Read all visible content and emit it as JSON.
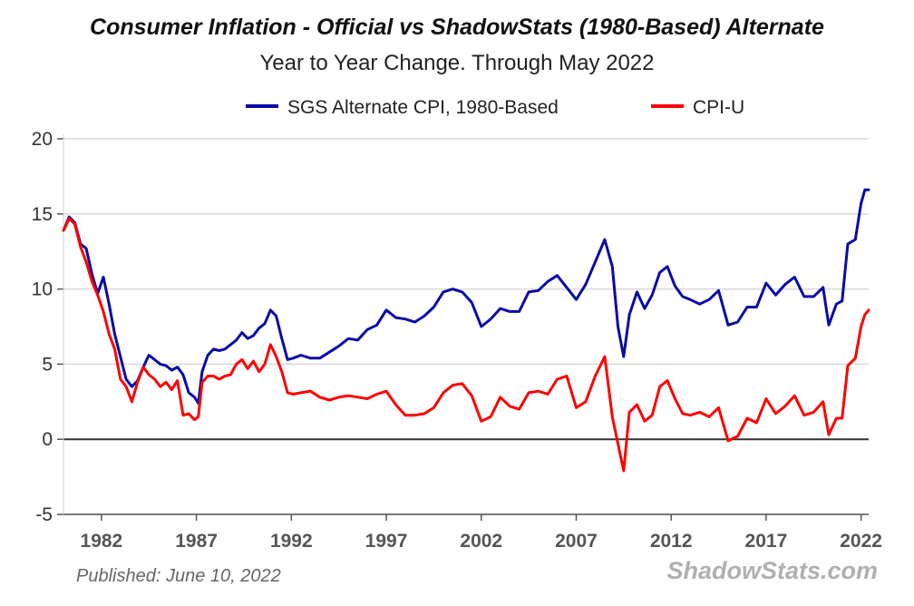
{
  "chart_data": {
    "type": "line",
    "title": "Consumer Inflation - Official vs ShadowStats (1980-Based) Alternate",
    "subtitle": "Year to Year Change. Through May 2022",
    "xlabel": "",
    "ylabel": "",
    "xlim": [
      1980,
      2022.4
    ],
    "ylim": [
      -5,
      20
    ],
    "yticks": [
      "-5",
      "0",
      "5",
      "10",
      "15",
      "20"
    ],
    "xticks": [
      "1982",
      "1987",
      "1992",
      "1997",
      "2002",
      "2007",
      "2012",
      "2017",
      "2022"
    ],
    "grid": true,
    "legend_position": "top",
    "series": [
      {
        "name": "SGS Alternate CPI, 1980-Based",
        "color": "#0a0aa6",
        "points": [
          [
            1980.0,
            13.9
          ],
          [
            1980.3,
            14.8
          ],
          [
            1980.6,
            14.4
          ],
          [
            1980.9,
            13.0
          ],
          [
            1981.2,
            12.7
          ],
          [
            1981.5,
            11.0
          ],
          [
            1981.8,
            9.7
          ],
          [
            1982.1,
            10.8
          ],
          [
            1982.4,
            9.0
          ],
          [
            1982.7,
            7.0
          ],
          [
            1983.0,
            5.5
          ],
          [
            1983.3,
            4.0
          ],
          [
            1983.6,
            3.5
          ],
          [
            1983.9,
            3.9
          ],
          [
            1984.2,
            4.8
          ],
          [
            1984.5,
            5.6
          ],
          [
            1984.8,
            5.3
          ],
          [
            1985.1,
            5.0
          ],
          [
            1985.4,
            4.9
          ],
          [
            1985.7,
            4.6
          ],
          [
            1986.0,
            4.8
          ],
          [
            1986.3,
            4.3
          ],
          [
            1986.6,
            3.1
          ],
          [
            1986.9,
            2.8
          ],
          [
            1987.1,
            2.4
          ],
          [
            1987.3,
            4.5
          ],
          [
            1987.6,
            5.6
          ],
          [
            1987.9,
            6.0
          ],
          [
            1988.2,
            5.9
          ],
          [
            1988.5,
            6.0
          ],
          [
            1988.8,
            6.3
          ],
          [
            1989.1,
            6.6
          ],
          [
            1989.4,
            7.1
          ],
          [
            1989.7,
            6.7
          ],
          [
            1990.0,
            6.9
          ],
          [
            1990.3,
            7.4
          ],
          [
            1990.6,
            7.7
          ],
          [
            1990.9,
            8.6
          ],
          [
            1991.2,
            8.2
          ],
          [
            1991.5,
            6.7
          ],
          [
            1991.8,
            5.3
          ],
          [
            1992.1,
            5.4
          ],
          [
            1992.5,
            5.6
          ],
          [
            1993.0,
            5.4
          ],
          [
            1993.5,
            5.4
          ],
          [
            1994.0,
            5.8
          ],
          [
            1994.5,
            6.2
          ],
          [
            1995.0,
            6.7
          ],
          [
            1995.5,
            6.6
          ],
          [
            1996.0,
            7.3
          ],
          [
            1996.5,
            7.6
          ],
          [
            1997.0,
            8.6
          ],
          [
            1997.5,
            8.1
          ],
          [
            1998.0,
            8.0
          ],
          [
            1998.5,
            7.8
          ],
          [
            1999.0,
            8.2
          ],
          [
            1999.5,
            8.8
          ],
          [
            2000.0,
            9.8
          ],
          [
            2000.5,
            10.0
          ],
          [
            2001.0,
            9.8
          ],
          [
            2001.5,
            9.1
          ],
          [
            2002.0,
            7.5
          ],
          [
            2002.5,
            8.0
          ],
          [
            2003.0,
            8.7
          ],
          [
            2003.5,
            8.5
          ],
          [
            2004.0,
            8.5
          ],
          [
            2004.5,
            9.8
          ],
          [
            2005.0,
            9.9
          ],
          [
            2005.5,
            10.5
          ],
          [
            2006.0,
            10.9
          ],
          [
            2006.5,
            10.1
          ],
          [
            2007.0,
            9.3
          ],
          [
            2007.5,
            10.3
          ],
          [
            2008.0,
            11.8
          ],
          [
            2008.5,
            13.3
          ],
          [
            2008.9,
            11.5
          ],
          [
            2009.2,
            7.5
          ],
          [
            2009.5,
            5.5
          ],
          [
            2009.8,
            8.3
          ],
          [
            2010.2,
            9.8
          ],
          [
            2010.6,
            8.7
          ],
          [
            2011.0,
            9.6
          ],
          [
            2011.4,
            11.1
          ],
          [
            2011.8,
            11.5
          ],
          [
            2012.2,
            10.2
          ],
          [
            2012.6,
            9.5
          ],
          [
            2013.0,
            9.3
          ],
          [
            2013.5,
            9.0
          ],
          [
            2014.0,
            9.3
          ],
          [
            2014.5,
            9.9
          ],
          [
            2015.0,
            7.6
          ],
          [
            2015.5,
            7.8
          ],
          [
            2016.0,
            8.8
          ],
          [
            2016.5,
            8.8
          ],
          [
            2017.0,
            10.4
          ],
          [
            2017.5,
            9.6
          ],
          [
            2018.0,
            10.3
          ],
          [
            2018.5,
            10.8
          ],
          [
            2019.0,
            9.5
          ],
          [
            2019.5,
            9.5
          ],
          [
            2020.0,
            10.1
          ],
          [
            2020.3,
            7.6
          ],
          [
            2020.7,
            9.0
          ],
          [
            2021.0,
            9.2
          ],
          [
            2021.3,
            13.0
          ],
          [
            2021.7,
            13.3
          ],
          [
            2022.0,
            15.7
          ],
          [
            2022.2,
            16.6
          ],
          [
            2022.4,
            16.6
          ]
        ]
      },
      {
        "name": "CPI-U",
        "color": "#ff0000",
        "points": [
          [
            1980.0,
            13.9
          ],
          [
            1980.3,
            14.7
          ],
          [
            1980.6,
            14.3
          ],
          [
            1980.9,
            12.8
          ],
          [
            1981.2,
            11.8
          ],
          [
            1981.5,
            10.5
          ],
          [
            1981.8,
            9.6
          ],
          [
            1982.1,
            8.5
          ],
          [
            1982.4,
            7.0
          ],
          [
            1982.7,
            6.0
          ],
          [
            1983.0,
            4.0
          ],
          [
            1983.3,
            3.5
          ],
          [
            1983.6,
            2.5
          ],
          [
            1983.9,
            3.8
          ],
          [
            1984.2,
            4.8
          ],
          [
            1984.5,
            4.3
          ],
          [
            1984.8,
            4.0
          ],
          [
            1985.1,
            3.5
          ],
          [
            1985.4,
            3.8
          ],
          [
            1985.7,
            3.3
          ],
          [
            1986.0,
            3.9
          ],
          [
            1986.3,
            1.6
          ],
          [
            1986.6,
            1.7
          ],
          [
            1986.9,
            1.3
          ],
          [
            1987.1,
            1.5
          ],
          [
            1987.3,
            3.8
          ],
          [
            1987.6,
            4.2
          ],
          [
            1987.9,
            4.2
          ],
          [
            1988.2,
            4.0
          ],
          [
            1988.5,
            4.2
          ],
          [
            1988.8,
            4.3
          ],
          [
            1989.1,
            5.0
          ],
          [
            1989.4,
            5.3
          ],
          [
            1989.7,
            4.7
          ],
          [
            1990.0,
            5.2
          ],
          [
            1990.3,
            4.5
          ],
          [
            1990.6,
            5.0
          ],
          [
            1990.9,
            6.3
          ],
          [
            1991.2,
            5.5
          ],
          [
            1991.5,
            4.5
          ],
          [
            1991.8,
            3.1
          ],
          [
            1992.1,
            3.0
          ],
          [
            1992.5,
            3.1
          ],
          [
            1993.0,
            3.2
          ],
          [
            1993.5,
            2.8
          ],
          [
            1994.0,
            2.6
          ],
          [
            1994.5,
            2.8
          ],
          [
            1995.0,
            2.9
          ],
          [
            1995.5,
            2.8
          ],
          [
            1996.0,
            2.7
          ],
          [
            1996.5,
            3.0
          ],
          [
            1997.0,
            3.2
          ],
          [
            1997.5,
            2.3
          ],
          [
            1998.0,
            1.6
          ],
          [
            1998.5,
            1.6
          ],
          [
            1999.0,
            1.7
          ],
          [
            1999.5,
            2.1
          ],
          [
            2000.0,
            3.1
          ],
          [
            2000.5,
            3.6
          ],
          [
            2001.0,
            3.7
          ],
          [
            2001.5,
            2.9
          ],
          [
            2002.0,
            1.2
          ],
          [
            2002.5,
            1.5
          ],
          [
            2003.0,
            2.8
          ],
          [
            2003.5,
            2.2
          ],
          [
            2004.0,
            2.0
          ],
          [
            2004.5,
            3.1
          ],
          [
            2005.0,
            3.2
          ],
          [
            2005.5,
            3.0
          ],
          [
            2006.0,
            4.0
          ],
          [
            2006.5,
            4.2
          ],
          [
            2007.0,
            2.1
          ],
          [
            2007.5,
            2.5
          ],
          [
            2008.0,
            4.2
          ],
          [
            2008.5,
            5.5
          ],
          [
            2008.9,
            1.5
          ],
          [
            2009.2,
            -0.3
          ],
          [
            2009.5,
            -2.1
          ],
          [
            2009.8,
            1.8
          ],
          [
            2010.2,
            2.3
          ],
          [
            2010.6,
            1.2
          ],
          [
            2011.0,
            1.6
          ],
          [
            2011.4,
            3.5
          ],
          [
            2011.8,
            3.9
          ],
          [
            2012.2,
            2.7
          ],
          [
            2012.6,
            1.7
          ],
          [
            2013.0,
            1.6
          ],
          [
            2013.5,
            1.8
          ],
          [
            2014.0,
            1.5
          ],
          [
            2014.5,
            2.1
          ],
          [
            2015.0,
            -0.1
          ],
          [
            2015.5,
            0.2
          ],
          [
            2016.0,
            1.4
          ],
          [
            2016.5,
            1.1
          ],
          [
            2017.0,
            2.7
          ],
          [
            2017.5,
            1.7
          ],
          [
            2018.0,
            2.2
          ],
          [
            2018.5,
            2.9
          ],
          [
            2019.0,
            1.6
          ],
          [
            2019.5,
            1.8
          ],
          [
            2020.0,
            2.5
          ],
          [
            2020.3,
            0.3
          ],
          [
            2020.7,
            1.4
          ],
          [
            2021.0,
            1.4
          ],
          [
            2021.3,
            4.9
          ],
          [
            2021.7,
            5.4
          ],
          [
            2022.0,
            7.5
          ],
          [
            2022.2,
            8.3
          ],
          [
            2022.4,
            8.6
          ]
        ]
      }
    ]
  },
  "footer": {
    "published": "Published: June 10, 2022",
    "brand": "ShadowStats.com"
  }
}
